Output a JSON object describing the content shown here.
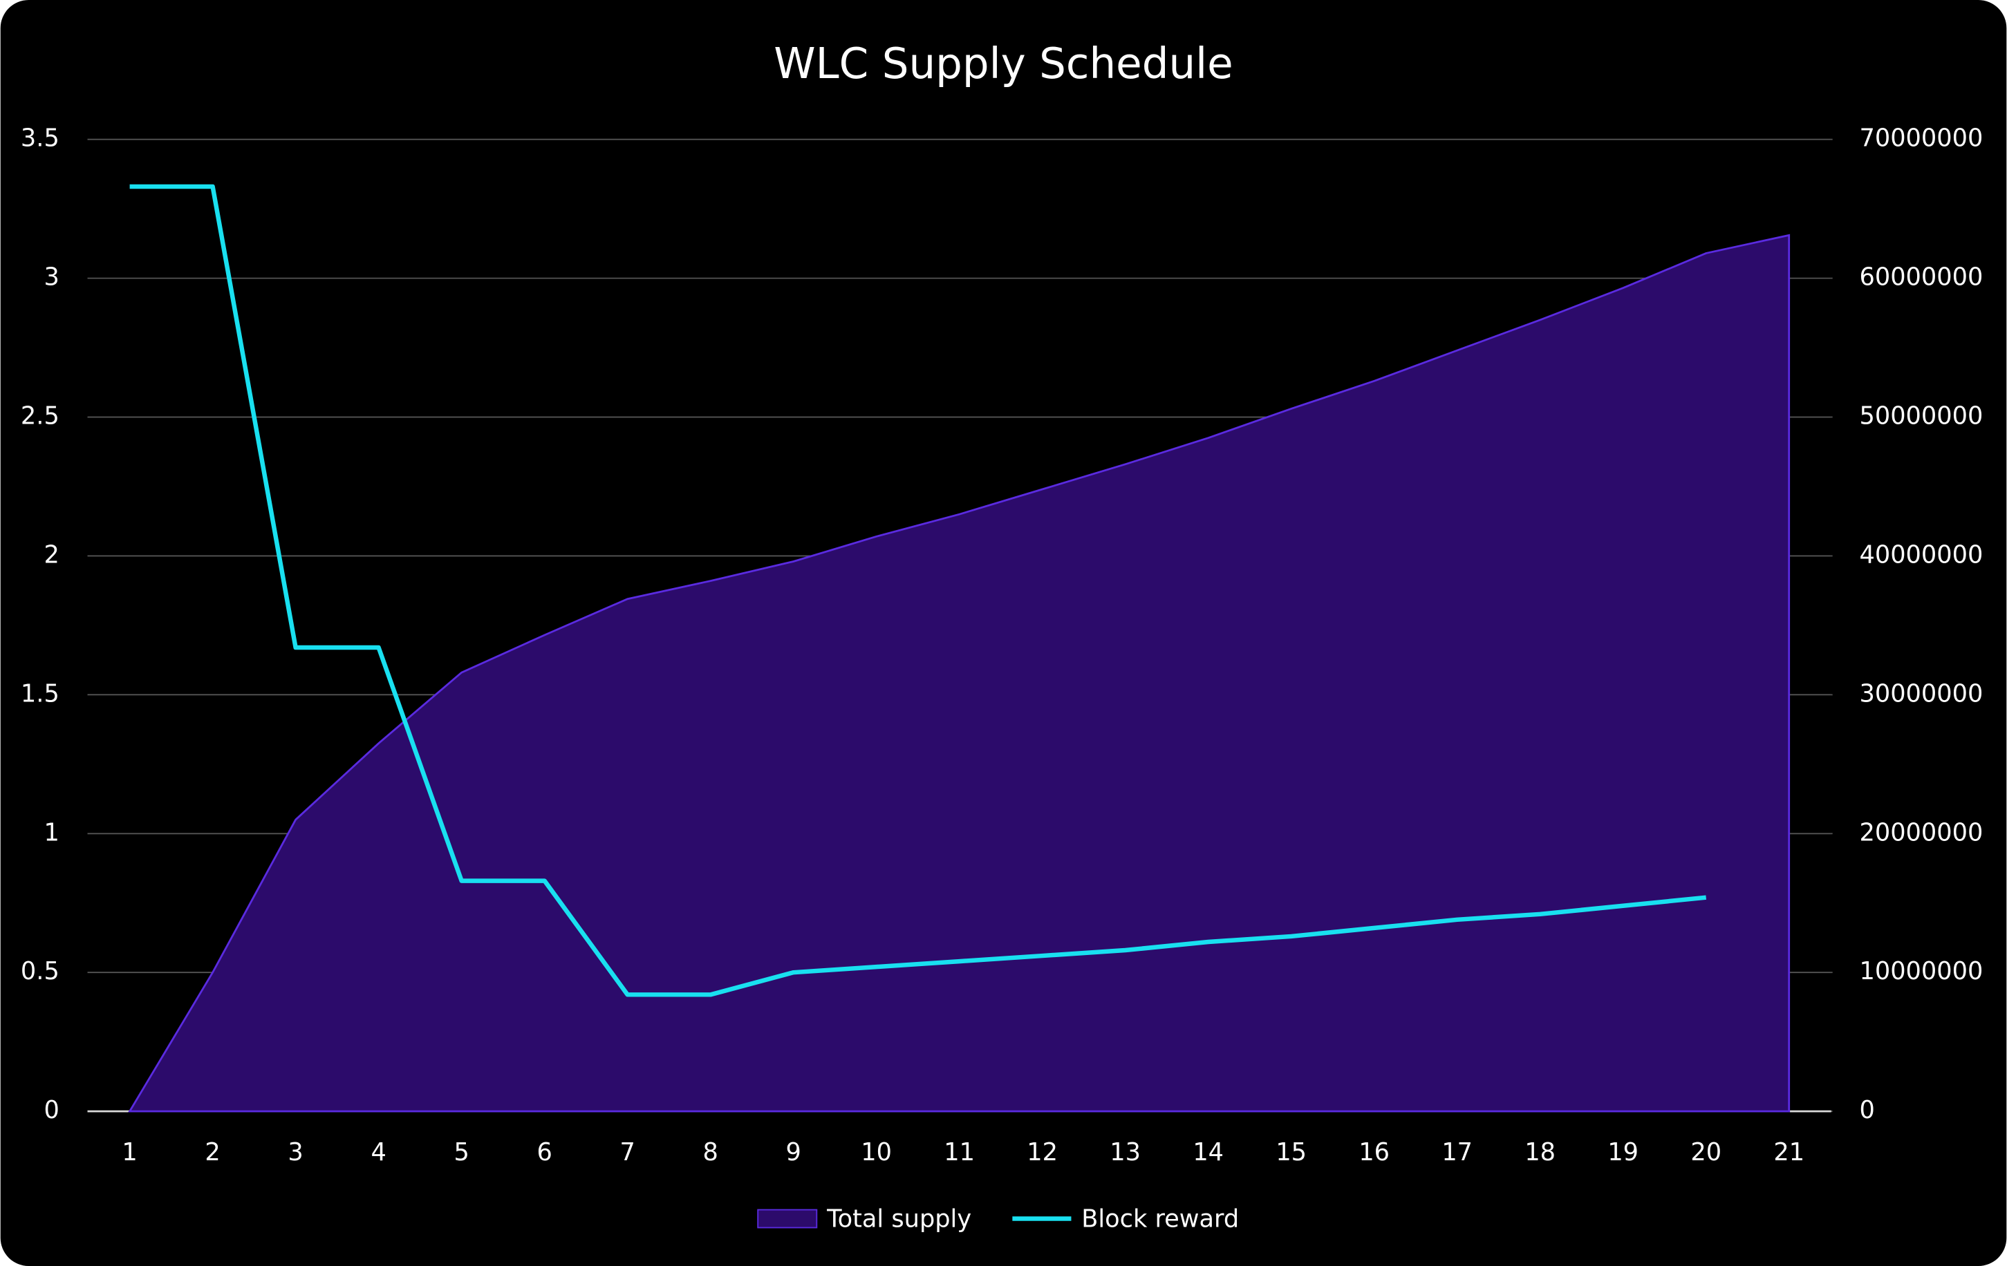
{
  "chart_data": {
    "type": "area-line",
    "title": "WLC Supply Schedule",
    "categories": [
      "1",
      "2",
      "3",
      "4",
      "5",
      "6",
      "7",
      "8",
      "9",
      "10",
      "11",
      "12",
      "13",
      "14",
      "15",
      "16",
      "17",
      "18",
      "19",
      "20",
      "21"
    ],
    "series": [
      {
        "name": "Total supply",
        "type": "area",
        "axis": "y2",
        "color": "#2c0b6b",
        "edge_color": "#5a2be0",
        "values": [
          0,
          10000000,
          21000000,
          26500000,
          31600000,
          34300000,
          36900000,
          38200000,
          39600000,
          41400000,
          43000000,
          44800000,
          46600000,
          48500000,
          50600000,
          52600000,
          54800000,
          57000000,
          59300000,
          61800000,
          63100000
        ]
      },
      {
        "name": "Block reward",
        "type": "line",
        "axis": "y",
        "color": "#19e0f0",
        "values": [
          3.33,
          3.33,
          1.67,
          1.67,
          0.83,
          0.83,
          0.42,
          0.42,
          0.5,
          0.52,
          0.54,
          0.56,
          0.58,
          0.61,
          0.63,
          0.66,
          0.69,
          0.71,
          0.74,
          0.77,
          null
        ]
      }
    ],
    "ylim": [
      0,
      3.5
    ],
    "yticks": [
      0,
      0.5,
      1,
      1.5,
      2,
      2.5,
      3,
      3.5
    ],
    "y2lim": [
      0,
      70000000
    ],
    "y2ticks": [
      0,
      10000000,
      20000000,
      30000000,
      40000000,
      50000000,
      60000000,
      70000000
    ],
    "grid": true,
    "legend": "bottom"
  }
}
